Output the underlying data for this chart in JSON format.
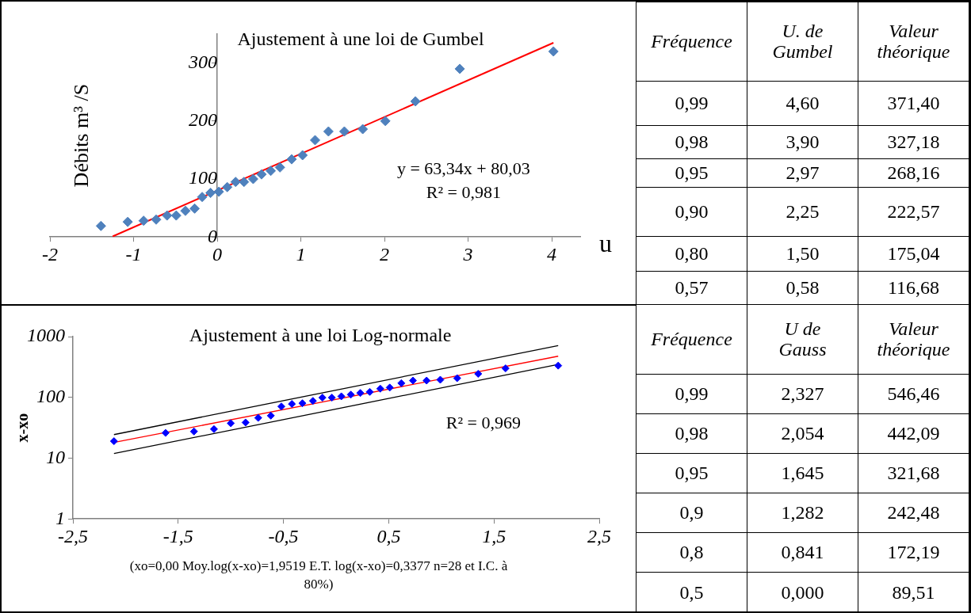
{
  "chart_data": [
    {
      "type": "scatter",
      "title": "Ajustement à une loi de Gumbel",
      "xlabel": "u",
      "ylabel": "Débits m³ /S",
      "xlim": [
        -2,
        4.34
      ],
      "xticks": [
        -2,
        -1,
        0,
        1,
        2,
        3,
        4
      ],
      "ylim": [
        0,
        350
      ],
      "yticks": [
        0,
        100,
        200,
        300
      ],
      "grid": false,
      "marker": "diamond",
      "series": [
        {
          "color": "#4f81bd",
          "x": [
            -1.39,
            -1.07,
            -0.88,
            -0.73,
            -0.6,
            -0.49,
            -0.38,
            -0.27,
            -0.18,
            -0.08,
            0.02,
            0.12,
            0.22,
            0.32,
            0.43,
            0.53,
            0.64,
            0.75,
            0.89,
            1.02,
            1.17,
            1.33,
            1.52,
            1.74,
            2.01,
            2.37,
            2.9,
            4.02
          ],
          "values": [
            19,
            26,
            28,
            30,
            37,
            37,
            45,
            49,
            69,
            76,
            78,
            86,
            95,
            95,
            100,
            108,
            114,
            120,
            134,
            141,
            167,
            182,
            182,
            186,
            200,
            234,
            290,
            320
          ]
        },
        {
          "type": "line",
          "marker": "none",
          "color": "#ff0000",
          "x": [
            -1.25,
            4.02
          ],
          "values": [
            1,
            335
          ]
        }
      ],
      "annotations": [
        "y = 63,34x + 80,03",
        "R² = 0,981"
      ]
    },
    {
      "type": "other",
      "annotations": [
        "Fréquence",
        "U. de Gumbel",
        "Valeur théorique",
        "0,99",
        "4,60",
        "371,40",
        "0,98",
        "3,90",
        "327,18",
        "0,95",
        "2,97",
        "268,16",
        "0,90",
        "2,25",
        "222,57",
        "0,80",
        "1,50",
        "175,04",
        "0,57",
        "0,58",
        "116,68"
      ]
    },
    {
      "type": "scatter",
      "title": "Ajustement à une loi Log-normale",
      "ylabel": "x-xo",
      "log": "y",
      "xlim": [
        -2.5,
        2.5
      ],
      "xticks": [
        {
          "value": -2.5,
          "label": "-2,5"
        },
        {
          "value": -1.5,
          "label": "-1,5"
        },
        {
          "value": -0.5,
          "label": "-0,5"
        },
        {
          "value": 0.5,
          "label": "0,5"
        },
        {
          "value": 1.5,
          "label": "1,5"
        },
        {
          "value": 2.5,
          "label": "2,5"
        }
      ],
      "ylim": [
        1,
        1000
      ],
      "yticks": [
        1,
        10,
        100,
        1000
      ],
      "grid": false,
      "marker": "diamond",
      "series": [
        {
          "color": "#0000ff",
          "x": [
            -2.11,
            -1.62,
            -1.35,
            -1.16,
            -1.0,
            -0.86,
            -0.74,
            -0.62,
            -0.52,
            -0.42,
            -0.32,
            -0.22,
            -0.13,
            -0.04,
            0.05,
            0.14,
            0.23,
            0.32,
            0.42,
            0.51,
            0.62,
            0.73,
            0.86,
            0.99,
            1.15,
            1.35,
            1.61,
            2.11
          ],
          "values": [
            19,
            26,
            27.5,
            30,
            37.5,
            38.6,
            46,
            50,
            71,
            78,
            80,
            87.5,
            99,
            99,
            104,
            111,
            118,
            123,
            139,
            145,
            171,
            189,
            189,
            195,
            207,
            244,
            300,
            333
          ]
        },
        {
          "type": "line",
          "marker": "none",
          "color": "#ff0000",
          "x": [
            -2.11,
            2.11
          ],
          "values": [
            18.1,
            476
          ]
        },
        {
          "type": "line",
          "marker": "none",
          "color": "#000000",
          "x": [
            -2.11,
            2.11
          ],
          "values": [
            24.4,
            711
          ]
        },
        {
          "type": "line",
          "marker": "none",
          "color": "#000000",
          "x": [
            -2.11,
            2.11
          ],
          "values": [
            11.9,
            348
          ]
        }
      ],
      "annotations": [
        "R² = 0,969",
        "(xo=0,00 Moy.log(x-xo)=1,9519 E.T. log(x-xo)=0,3377 n=28 et I.C. à 80%)"
      ]
    },
    {
      "type": "other",
      "annotations": [
        "Fréquence",
        "U de Gauss",
        "Valeur théorique",
        "0,99",
        "2,327",
        "546,46",
        "0,98",
        "2,054",
        "442,09",
        "0,95",
        "1,645",
        "321,68",
        "0,9",
        "1,282",
        "242,48",
        "0,8",
        "0,841",
        "172,19",
        "0,5",
        "0,000",
        "89,51"
      ]
    }
  ]
}
